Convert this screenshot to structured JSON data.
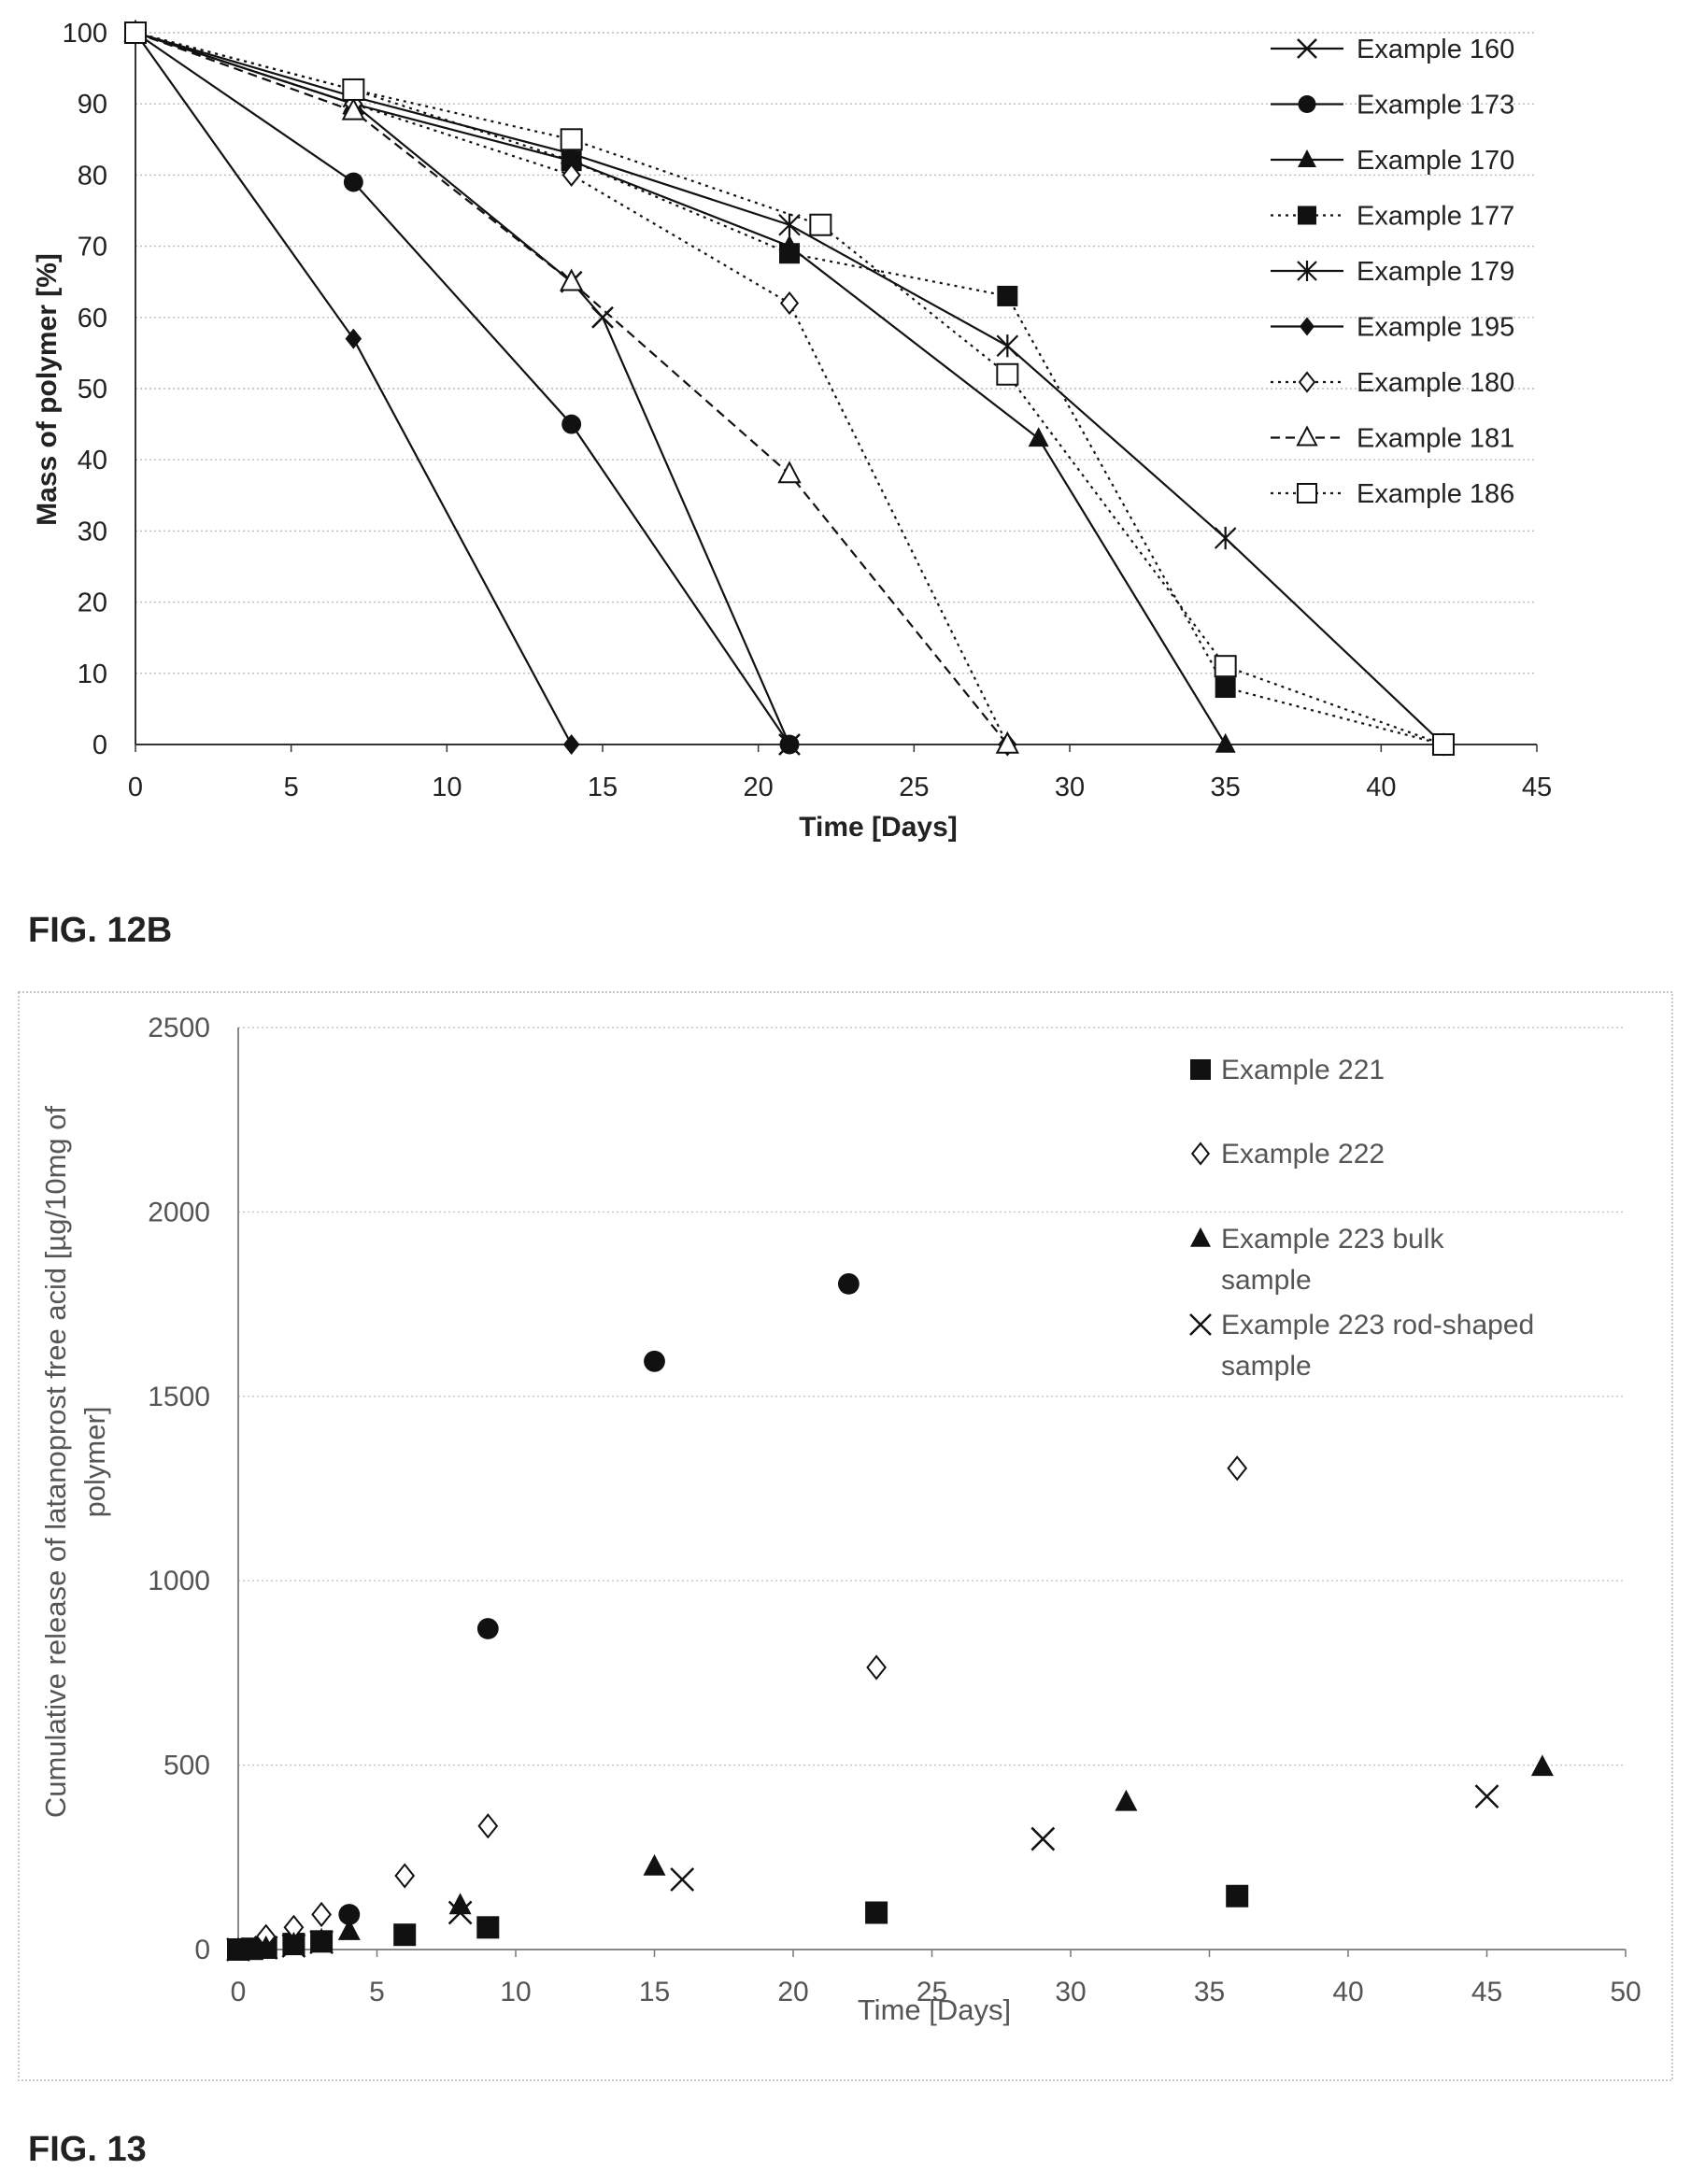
{
  "figures": {
    "fig12b_label": "FIG. 12B",
    "fig13_label": "FIG. 13"
  },
  "chart_data": [
    {
      "type": "line",
      "title": "",
      "xlabel": "Time [Days]",
      "ylabel": "Mass of polymer [%]",
      "xlim": [
        0,
        45
      ],
      "ylim": [
        0,
        100
      ],
      "xticks": [
        "0",
        "5",
        "10",
        "15",
        "20",
        "25",
        "30",
        "35",
        "40",
        "45"
      ],
      "yticks": [
        "0",
        "10",
        "20",
        "30",
        "40",
        "50",
        "60",
        "70",
        "80",
        "90",
        "100"
      ],
      "grid": true,
      "legend_position": "right",
      "series": [
        {
          "name": "Example 160",
          "marker": "x",
          "line": "solid",
          "x": [
            0,
            7,
            14,
            15,
            21
          ],
          "y": [
            100,
            90,
            65,
            60,
            0
          ]
        },
        {
          "name": "Example 173",
          "marker": "circle",
          "line": "solid",
          "x": [
            0,
            7,
            14,
            21
          ],
          "y": [
            100,
            79,
            45,
            0
          ]
        },
        {
          "name": "Example 170",
          "marker": "triangle",
          "line": "solid",
          "x": [
            0,
            7,
            14,
            21,
            29,
            35
          ],
          "y": [
            100,
            90,
            82,
            70,
            43,
            0
          ]
        },
        {
          "name": "Example 177",
          "marker": "square",
          "line": "dotted",
          "x": [
            0,
            7,
            14,
            21,
            28,
            35,
            42
          ],
          "y": [
            100,
            92,
            82,
            69,
            63,
            8,
            0
          ]
        },
        {
          "name": "Example 179",
          "marker": "asterisk",
          "line": "solid",
          "x": [
            0,
            7,
            14,
            21,
            28,
            35,
            42
          ],
          "y": [
            100,
            91,
            83,
            73,
            56,
            29,
            0
          ]
        },
        {
          "name": "Example 195",
          "marker": "diamond",
          "line": "solid",
          "x": [
            0,
            7,
            14
          ],
          "y": [
            100,
            57,
            0
          ]
        },
        {
          "name": "Example 180",
          "marker": "diamond-open",
          "line": "dotted",
          "x": [
            0,
            7,
            14,
            21,
            28
          ],
          "y": [
            100,
            90,
            80,
            62,
            0
          ]
        },
        {
          "name": "Example 181",
          "marker": "triangle-open",
          "line": "dashed",
          "x": [
            0,
            7,
            14,
            21,
            28
          ],
          "y": [
            100,
            89,
            65,
            38,
            0
          ]
        },
        {
          "name": "Example 186",
          "marker": "square-open",
          "line": "dotted",
          "x": [
            0,
            7,
            14,
            22,
            28,
            35,
            42
          ],
          "y": [
            100,
            92,
            85,
            73,
            52,
            11,
            0
          ]
        }
      ]
    },
    {
      "type": "scatter",
      "title": "",
      "xlabel": "Time [Days]",
      "ylabel": "Cumulative release of latanoprost free acid [µg/10mg of polymer]",
      "xlim": [
        0,
        50
      ],
      "ylim": [
        0,
        2500
      ],
      "xticks": [
        "0",
        "5",
        "10",
        "15",
        "20",
        "25",
        "30",
        "35",
        "40",
        "45",
        "50"
      ],
      "yticks": [
        "0",
        "500",
        "1000",
        "1500",
        "2000",
        "2500"
      ],
      "grid": true,
      "legend_position": "top-right",
      "series": [
        {
          "name": "Example 221",
          "marker": "square",
          "x": [
            0,
            0.5,
            1,
            2,
            3,
            6,
            9,
            23,
            36
          ],
          "y": [
            0,
            2,
            5,
            15,
            22,
            40,
            60,
            100,
            145
          ]
        },
        {
          "name": "Example 222",
          "marker": "diamond-open",
          "x": [
            1,
            2,
            3,
            6,
            9,
            23,
            36
          ],
          "y": [
            35,
            60,
            95,
            200,
            335,
            765,
            1305
          ]
        },
        {
          "name": "Example 223 bulk sample",
          "marker": "triangle",
          "x": [
            0,
            1,
            2,
            3,
            4,
            8,
            15,
            32,
            47
          ],
          "y": [
            0,
            5,
            15,
            25,
            50,
            120,
            225,
            400,
            495
          ]
        },
        {
          "name": "Example 223 rod-shaped sample",
          "marker": "x",
          "x": [
            0,
            1,
            2,
            3,
            8,
            16,
            29,
            45
          ],
          "y": [
            0,
            5,
            10,
            20,
            100,
            190,
            300,
            415
          ]
        },
        {
          "name": "",
          "marker": "circle",
          "x": [
            4,
            9,
            15,
            22
          ],
          "y": [
            95,
            870,
            1595,
            1805
          ]
        }
      ]
    }
  ]
}
